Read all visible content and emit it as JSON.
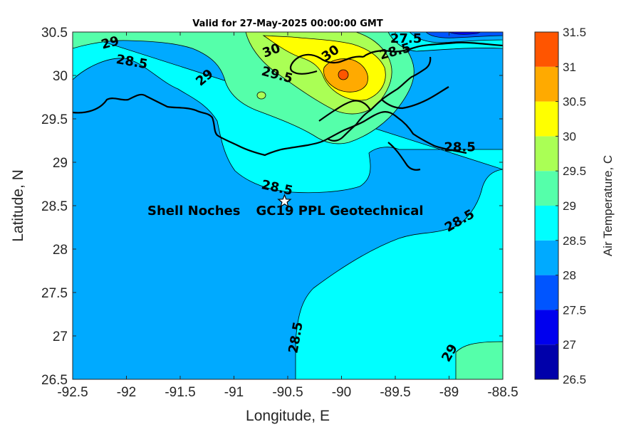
{
  "chart_data": {
    "type": "contour-map",
    "title": "Valid for 27-May-2025 00:00:00 GMT",
    "xlabel": "Longitude, E",
    "ylabel": "Latitude, N",
    "xlim": [
      -92.5,
      -88.5
    ],
    "ylim": [
      26.5,
      30.5
    ],
    "xticks": [
      "-92.5",
      "-92",
      "-91.5",
      "-91",
      "-90.5",
      "-90",
      "-89.5",
      "-89",
      "-88.5"
    ],
    "yticks": [
      "30.5",
      "30",
      "29.5",
      "29",
      "28.5",
      "28",
      "27.5",
      "27",
      "26.5"
    ],
    "colorbar": {
      "label": "Air Temperature, C",
      "ticks": [
        "31.5",
        "31",
        "30.5",
        "30",
        "29.5",
        "29",
        "28.5",
        "28",
        "27.5",
        "27",
        "26.5"
      ],
      "levels": [
        26.5,
        27,
        27.5,
        28,
        28.5,
        29,
        29.5,
        30,
        30.5,
        31,
        31.5
      ],
      "colors": [
        "#0000aa",
        "#0000ee",
        "#0055ff",
        "#00aaff",
        "#00ffff",
        "#55ffaa",
        "#aaff55",
        "#ffff00",
        "#ffaa00",
        "#ff5500",
        "#ff0000"
      ]
    },
    "contour_labels": [
      {
        "text": "29",
        "lon": -92.15,
        "lat": 30.37
      },
      {
        "text": "28.5",
        "lon": -91.95,
        "lat": 30.15
      },
      {
        "text": "29",
        "lon": -91.27,
        "lat": 29.97
      },
      {
        "text": "30",
        "lon": -90.65,
        "lat": 30.28
      },
      {
        "text": "29.5",
        "lon": -90.6,
        "lat": 30.0
      },
      {
        "text": "30",
        "lon": -90.1,
        "lat": 30.25
      },
      {
        "text": "27.5",
        "lon": -89.4,
        "lat": 30.42
      },
      {
        "text": "28.5",
        "lon": -89.5,
        "lat": 30.27
      },
      {
        "text": "28.5",
        "lon": -88.9,
        "lat": 29.17
      },
      {
        "text": "28.5",
        "lon": -90.6,
        "lat": 28.7
      },
      {
        "text": "28.5",
        "lon": -88.9,
        "lat": 28.32
      },
      {
        "text": "28.5",
        "lon": -90.42,
        "lat": 26.98
      },
      {
        "text": "29",
        "lon": -88.99,
        "lat": 26.8
      }
    ],
    "site": {
      "label_left": "Shell Noches",
      "label_right": "GC19 PPL  Geotechnical",
      "lon": -90.53,
      "lat": 28.55
    }
  }
}
